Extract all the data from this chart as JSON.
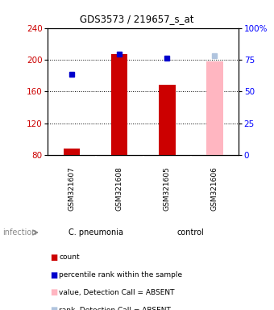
{
  "title": "GDS3573 / 219657_s_at",
  "samples": [
    "GSM321607",
    "GSM321608",
    "GSM321605",
    "GSM321606"
  ],
  "groups": [
    "C. pneumonia",
    "C. pneumonia",
    "control",
    "control"
  ],
  "bar_values": [
    88,
    207,
    168,
    198
  ],
  "bar_absent": [
    false,
    false,
    false,
    true
  ],
  "percentile_values": [
    182,
    207,
    202,
    205
  ],
  "percentile_absent": [
    false,
    false,
    false,
    true
  ],
  "ylim_left": [
    80,
    240
  ],
  "ylim_right": [
    0,
    100
  ],
  "yticks_left": [
    80,
    120,
    160,
    200,
    240
  ],
  "yticks_right": [
    0,
    25,
    50,
    75,
    100
  ],
  "grid_values": [
    120,
    160,
    200
  ],
  "legend_items": [
    {
      "label": "count",
      "color": "#cc0000"
    },
    {
      "label": "percentile rank within the sample",
      "color": "#0000cc"
    },
    {
      "label": "value, Detection Call = ABSENT",
      "color": "#ffb6c1"
    },
    {
      "label": "rank, Detection Call = ABSENT",
      "color": "#b0c4de"
    }
  ],
  "group_label": "infection",
  "bar_color_present": "#cc0000",
  "bar_color_absent": "#ffb6c1",
  "pct_color_present": "#0000cc",
  "pct_color_absent": "#b0c4de",
  "group_bg_color": "#90EE90",
  "sample_bg_color": "#d3d3d3",
  "background_color": "#ffffff"
}
